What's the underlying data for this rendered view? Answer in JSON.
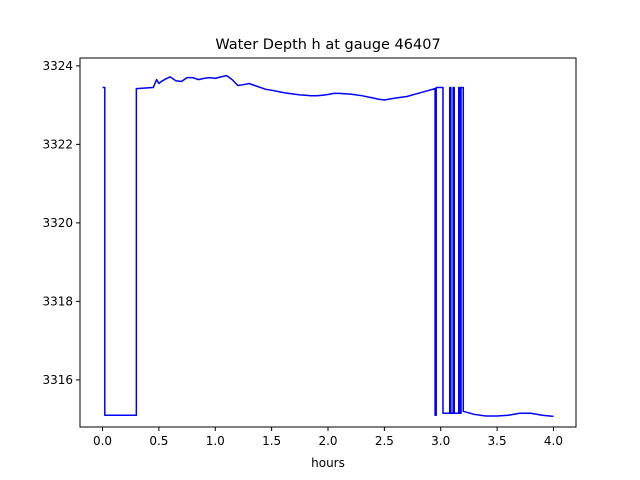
{
  "chart_data": {
    "type": "line",
    "title": "Water Depth h at gauge 46407",
    "xlabel": "hours",
    "ylabel": "",
    "xlim": [
      -0.2,
      4.2
    ],
    "ylim": [
      3314.8,
      3324.2
    ],
    "xticks": [
      0.0,
      0.5,
      1.0,
      1.5,
      2.0,
      2.5,
      3.0,
      3.5,
      4.0
    ],
    "xtick_labels": [
      "0.0",
      "0.5",
      "1.0",
      "1.5",
      "2.0",
      "2.5",
      "3.0",
      "3.5",
      "4.0"
    ],
    "yticks": [
      3316,
      3318,
      3320,
      3322,
      3324
    ],
    "ytick_labels": [
      "3316",
      "3318",
      "3320",
      "3322",
      "3324"
    ],
    "grid": false,
    "series": [
      {
        "color": "#0000ff",
        "x": [
          0.0,
          0.02,
          0.02,
          0.3,
          0.3,
          0.45,
          0.48,
          0.5,
          0.52,
          0.55,
          0.6,
          0.65,
          0.7,
          0.75,
          0.8,
          0.85,
          0.9,
          0.95,
          1.0,
          1.05,
          1.1,
          1.15,
          1.2,
          1.25,
          1.3,
          1.35,
          1.4,
          1.45,
          1.5,
          1.55,
          1.6,
          1.65,
          1.7,
          1.75,
          1.8,
          1.85,
          1.9,
          1.95,
          2.0,
          2.05,
          2.1,
          2.2,
          2.3,
          2.4,
          2.45,
          2.5,
          2.6,
          2.7,
          2.8,
          2.9,
          2.95,
          2.95,
          2.96,
          2.96,
          3.02,
          3.02,
          3.08,
          3.08,
          3.09,
          3.09,
          3.11,
          3.11,
          3.12,
          3.12,
          3.16,
          3.16,
          3.17,
          3.17,
          3.18,
          3.18,
          3.2,
          3.2,
          3.3,
          3.4,
          3.5,
          3.6,
          3.7,
          3.8,
          3.9,
          4.0
        ],
        "y": [
          3323.45,
          3323.45,
          3315.1,
          3315.1,
          3323.42,
          3323.45,
          3323.65,
          3323.55,
          3323.6,
          3323.65,
          3323.72,
          3323.62,
          3323.6,
          3323.7,
          3323.7,
          3323.65,
          3323.68,
          3323.7,
          3323.68,
          3323.72,
          3323.75,
          3323.65,
          3323.5,
          3323.52,
          3323.55,
          3323.5,
          3323.45,
          3323.4,
          3323.38,
          3323.35,
          3323.32,
          3323.3,
          3323.28,
          3323.26,
          3323.25,
          3323.24,
          3323.24,
          3323.25,
          3323.27,
          3323.3,
          3323.3,
          3323.28,
          3323.24,
          3323.18,
          3323.15,
          3323.13,
          3323.18,
          3323.22,
          3323.3,
          3323.38,
          3323.42,
          3315.1,
          3315.1,
          3323.45,
          3323.45,
          3315.15,
          3315.15,
          3323.45,
          3323.45,
          3315.15,
          3315.15,
          3323.45,
          3323.45,
          3315.15,
          3315.15,
          3323.45,
          3323.45,
          3315.15,
          3315.15,
          3323.45,
          3323.45,
          3315.2,
          3315.12,
          3315.08,
          3315.08,
          3315.1,
          3315.15,
          3315.15,
          3315.1,
          3315.07
        ]
      }
    ]
  }
}
